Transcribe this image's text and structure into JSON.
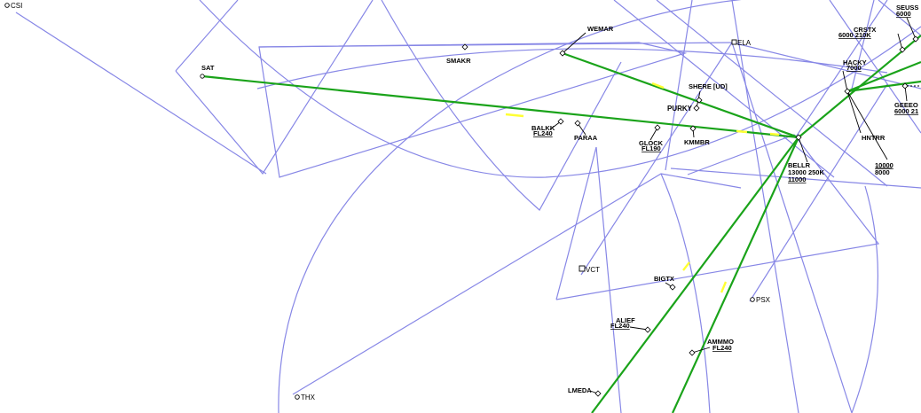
{
  "navaids": [
    {
      "id": "ELA",
      "label": "ELA"
    },
    {
      "id": "VCT",
      "label": "VCT"
    },
    {
      "id": "PSX",
      "label": "PSX"
    },
    {
      "id": "THX",
      "label": "THX"
    },
    {
      "id": "CSI",
      "label": "CSI"
    }
  ],
  "fixes": [
    {
      "id": "SAT",
      "label": "SAT",
      "restriction": []
    },
    {
      "id": "SMAKR",
      "label": "SMAKR",
      "restriction": []
    },
    {
      "id": "WEMAR",
      "label": "WEMAR",
      "restriction": []
    },
    {
      "id": "BALKK",
      "label": "BALKK",
      "restriction": [
        "FL240"
      ]
    },
    {
      "id": "PARAA",
      "label": "PARAA",
      "restriction": []
    },
    {
      "id": "GLOCK",
      "label": "GLOCK",
      "restriction": [
        "FL190"
      ]
    },
    {
      "id": "KMMBR",
      "label": "KMMBR",
      "restriction": []
    },
    {
      "id": "SHERE",
      "label": "SHERE [UD]",
      "restriction": []
    },
    {
      "id": "PURKY",
      "label": "PURKY",
      "restriction": []
    },
    {
      "id": "BELLR",
      "label": "BELLR",
      "restriction": [
        "13000 250K",
        "11000"
      ]
    },
    {
      "id": "HNTRR",
      "label": "HNTRR",
      "restriction": []
    },
    {
      "id": "HNTRR_ALT",
      "label": "",
      "restriction": [
        "10000",
        "8000"
      ]
    },
    {
      "id": "HACKY",
      "label": "HACKY",
      "restriction": [
        "7000"
      ]
    },
    {
      "id": "CRSTX",
      "label": "CRSTX",
      "restriction": [
        "6000 210K"
      ]
    },
    {
      "id": "SEUSS",
      "label": "SEUSS",
      "restriction": [
        "6000"
      ]
    },
    {
      "id": "GEEEO",
      "label": "GEEEO",
      "restriction": [
        "6000 21"
      ]
    },
    {
      "id": "BIGTX",
      "label": "BIGTX",
      "restriction": []
    },
    {
      "id": "ALIEF",
      "label": "ALIEF",
      "restriction": [
        "FL240"
      ]
    },
    {
      "id": "AMMMO",
      "label": "AMMMO",
      "restriction": [
        "FL240"
      ]
    },
    {
      "id": "LMEDA",
      "label": "LMEDA",
      "restriction": []
    }
  ],
  "colors": {
    "boundary": "#8787e6",
    "route": "#1aa31a",
    "route_highlight": "#ffff33",
    "text": "#000000"
  }
}
